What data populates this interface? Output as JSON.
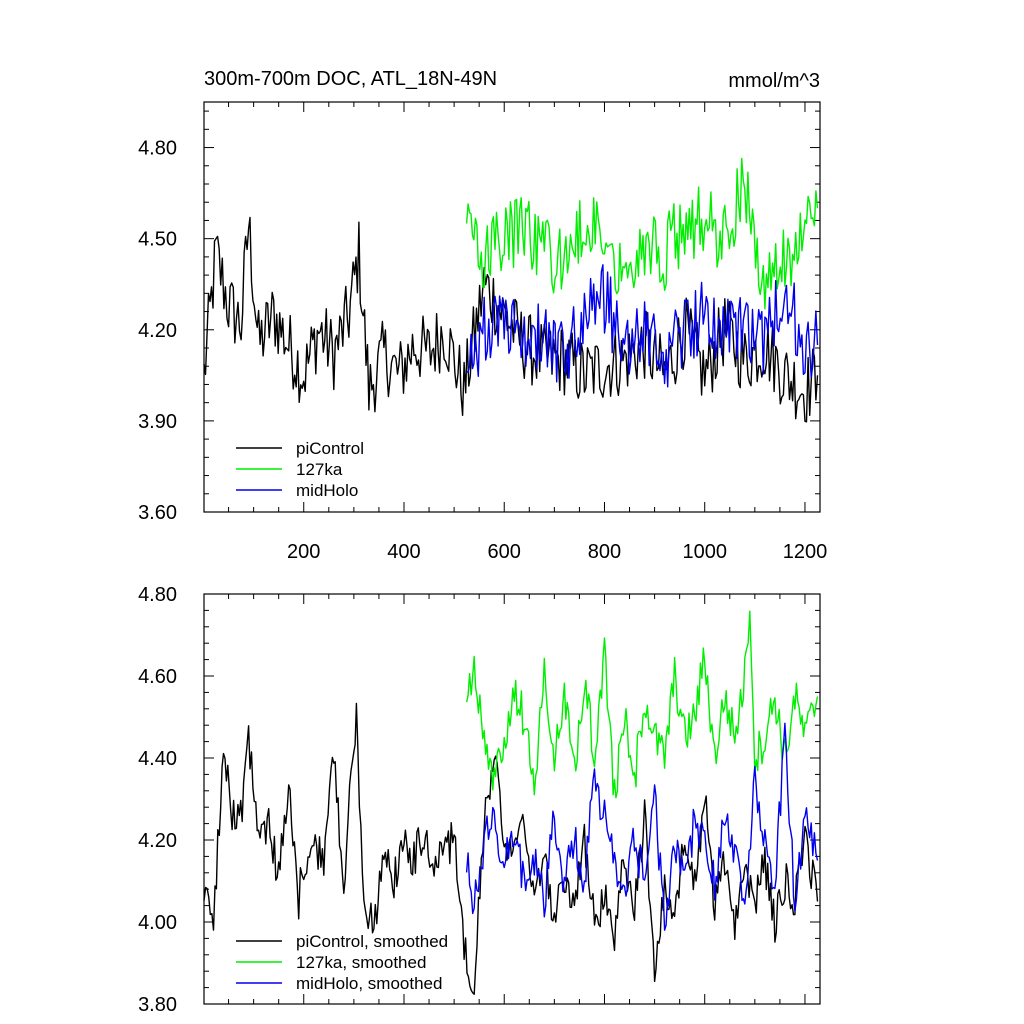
{
  "chart_data": [
    {
      "type": "line",
      "title": "300m-700m DOC, ATL_18N-49N",
      "units": "mmol/m^3",
      "xlim": [
        1,
        1230
      ],
      "ylim": [
        3.6,
        4.95
      ],
      "x_ticks": [
        200,
        400,
        600,
        800,
        1000,
        1200
      ],
      "x_tick_labels": [
        "200",
        "400",
        "600",
        "800",
        "1000",
        "1200"
      ],
      "y_ticks": [
        3.6,
        3.9,
        4.2,
        4.5,
        4.8
      ],
      "y_tick_labels": [
        "3.60",
        "3.90",
        "4.20",
        "4.50",
        "4.80"
      ],
      "legend_position": "bottom-left",
      "series": [
        {
          "name": "piControl",
          "color": "#000000",
          "x": [
            1,
            25,
            50,
            75,
            90,
            110,
            140,
            170,
            200,
            230,
            260,
            290,
            310,
            330,
            360,
            390,
            420,
            450,
            480,
            520,
            560,
            600,
            640,
            680,
            720,
            760,
            800,
            840,
            880,
            920,
            960,
            1000,
            1040,
            1080,
            1120,
            1160,
            1200,
            1225
          ],
          "values": [
            4.05,
            4.45,
            4.28,
            4.22,
            4.55,
            4.15,
            4.25,
            4.15,
            4.05,
            4.2,
            4.12,
            4.25,
            4.45,
            4.0,
            4.12,
            4.05,
            4.15,
            4.12,
            4.2,
            4.0,
            4.35,
            4.25,
            4.15,
            4.1,
            4.1,
            4.05,
            4.08,
            4.1,
            4.15,
            4.05,
            4.2,
            4.05,
            4.2,
            4.1,
            4.15,
            4.05,
            4.0,
            4.05
          ]
        },
        {
          "name": "127ka",
          "color": "#00ee00",
          "x": [
            525,
            560,
            600,
            640,
            680,
            720,
            760,
            800,
            840,
            880,
            920,
            960,
            1000,
            1040,
            1080,
            1120,
            1160,
            1200,
            1225
          ],
          "values": [
            4.55,
            4.45,
            4.5,
            4.55,
            4.45,
            4.4,
            4.55,
            4.5,
            4.4,
            4.5,
            4.45,
            4.55,
            4.55,
            4.5,
            4.7,
            4.3,
            4.45,
            4.5,
            4.6
          ]
        },
        {
          "name": "midHolo",
          "color": "#0000ee",
          "x": [
            525,
            560,
            600,
            640,
            680,
            720,
            760,
            800,
            840,
            880,
            920,
            960,
            1000,
            1040,
            1080,
            1120,
            1160,
            1200,
            1225
          ],
          "values": [
            4.1,
            4.2,
            4.2,
            4.2,
            4.15,
            4.1,
            4.25,
            4.3,
            4.15,
            4.2,
            4.1,
            4.2,
            4.25,
            4.2,
            4.2,
            4.15,
            4.35,
            4.1,
            4.15
          ]
        }
      ]
    },
    {
      "type": "line",
      "title": "",
      "xlim": [
        1,
        1230
      ],
      "ylim": [
        3.8,
        4.8
      ],
      "x_ticks": [
        200,
        400,
        600,
        800,
        1000,
        1200
      ],
      "y_ticks": [
        3.8,
        4.0,
        4.2,
        4.4,
        4.6,
        4.8
      ],
      "y_tick_labels": [
        "3.80",
        "4.00",
        "4.20",
        "4.40",
        "4.60",
        "4.80"
      ],
      "legend_position": "bottom-left",
      "series": [
        {
          "name": "piControl, smoothed",
          "color": "#000000",
          "x": [
            1,
            20,
            40,
            60,
            80,
            90,
            110,
            130,
            150,
            170,
            190,
            200,
            220,
            240,
            260,
            280,
            300,
            305,
            320,
            340,
            360,
            380,
            400,
            420,
            440,
            460,
            480,
            500,
            520,
            540,
            560,
            580,
            600,
            620,
            640,
            660,
            680,
            700,
            720,
            740,
            760,
            780,
            800,
            820,
            840,
            860,
            880,
            900,
            920,
            940,
            960,
            980,
            1000,
            1020,
            1040,
            1060,
            1080,
            1100,
            1120,
            1140,
            1160,
            1180,
            1200,
            1225
          ],
          "values": [
            4.05,
            4.02,
            4.4,
            4.25,
            4.3,
            4.45,
            4.2,
            4.25,
            4.1,
            4.35,
            4.05,
            4.15,
            4.2,
            4.15,
            4.4,
            4.1,
            4.45,
            4.5,
            4.05,
            3.98,
            4.18,
            4.1,
            4.2,
            4.15,
            4.22,
            4.12,
            4.18,
            4.2,
            3.95,
            3.85,
            4.25,
            4.4,
            4.2,
            4.15,
            4.25,
            4.05,
            4.15,
            4.0,
            4.1,
            4.05,
            4.2,
            4.0,
            4.05,
            3.98,
            4.15,
            4.05,
            4.25,
            3.9,
            4.1,
            4.0,
            4.2,
            4.1,
            4.3,
            4.05,
            4.15,
            4.0,
            4.1,
            4.05,
            4.15,
            4.0,
            4.1,
            4.05,
            4.2,
            4.05
          ]
        },
        {
          "name": "127ka, smoothed",
          "color": "#00ee00",
          "x": [
            525,
            540,
            560,
            580,
            600,
            620,
            640,
            660,
            680,
            700,
            720,
            740,
            760,
            780,
            800,
            820,
            840,
            860,
            880,
            900,
            920,
            940,
            960,
            980,
            1000,
            1020,
            1040,
            1060,
            1080,
            1090,
            1100,
            1120,
            1140,
            1160,
            1180,
            1200,
            1225
          ],
          "values": [
            4.55,
            4.62,
            4.45,
            4.35,
            4.45,
            4.55,
            4.5,
            4.35,
            4.6,
            4.4,
            4.55,
            4.35,
            4.6,
            4.4,
            4.65,
            4.3,
            4.5,
            4.35,
            4.55,
            4.45,
            4.4,
            4.6,
            4.45,
            4.5,
            4.65,
            4.4,
            4.55,
            4.45,
            4.6,
            4.78,
            4.4,
            4.45,
            4.55,
            4.4,
            4.55,
            4.45,
            4.55
          ]
        },
        {
          "name": "midHolo, smoothed",
          "color": "#0000ee",
          "x": [
            525,
            540,
            560,
            580,
            600,
            620,
            640,
            660,
            680,
            700,
            720,
            740,
            760,
            780,
            800,
            820,
            840,
            860,
            880,
            900,
            920,
            940,
            960,
            980,
            1000,
            1020,
            1040,
            1060,
            1080,
            1100,
            1120,
            1140,
            1160,
            1180,
            1200,
            1225
          ],
          "values": [
            4.15,
            4.05,
            4.2,
            4.25,
            4.15,
            4.2,
            4.1,
            4.15,
            4.05,
            4.25,
            4.1,
            4.2,
            4.1,
            4.35,
            4.25,
            4.15,
            4.05,
            4.2,
            4.1,
            4.3,
            4.0,
            4.2,
            4.1,
            4.25,
            4.2,
            4.1,
            4.25,
            4.15,
            4.05,
            4.35,
            4.2,
            4.1,
            4.45,
            4.05,
            4.25,
            4.15
          ]
        }
      ]
    }
  ]
}
